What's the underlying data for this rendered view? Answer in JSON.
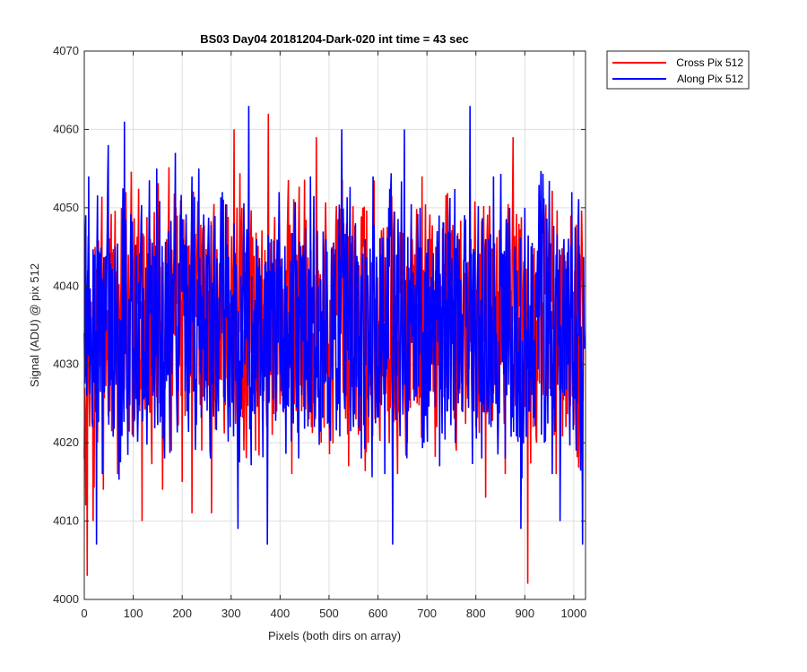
{
  "chart_data": {
    "type": "line",
    "title": "BS03 Day04 20181204-Dark-020 int time = 43 sec",
    "xlabel": "Pixels (both dirs on array)",
    "ylabel": "Signal (ADU) @ pix 512",
    "xlim": [
      0,
      1024
    ],
    "ylim": [
      4000,
      4070
    ],
    "xticks": [
      0,
      100,
      200,
      300,
      400,
      500,
      600,
      700,
      800,
      900,
      1000
    ],
    "yticks": [
      4000,
      4010,
      4020,
      4030,
      4040,
      4050,
      4060,
      4070
    ],
    "grid": true,
    "legend_position": "outside-top-right",
    "series": [
      {
        "name": "Cross Pix 512",
        "color": "#ff0000",
        "mean": 4035,
        "points": [
          [
            0,
            4018
          ],
          [
            3,
            4012
          ],
          [
            6,
            4003
          ],
          [
            10,
            4026
          ],
          [
            14,
            4038
          ],
          [
            18,
            4010
          ],
          [
            22,
            4045
          ],
          [
            27,
            4020
          ],
          [
            33,
            4030
          ],
          [
            39,
            4014
          ],
          [
            45,
            4042
          ],
          [
            52,
            4024
          ],
          [
            60,
            4034
          ],
          [
            68,
            4016
          ],
          [
            75,
            4040
          ],
          [
            82,
            4027
          ],
          [
            90,
            4044
          ],
          [
            98,
            4021
          ],
          [
            105,
            4036
          ],
          [
            112,
            4030
          ],
          [
            118,
            4010
          ],
          [
            126,
            4033
          ],
          [
            135,
            4046
          ],
          [
            144,
            4024
          ],
          [
            152,
            4038
          ],
          [
            160,
            4014
          ],
          [
            170,
            4041
          ],
          [
            180,
            4026
          ],
          [
            190,
            4049
          ],
          [
            200,
            4015
          ],
          [
            210,
            4037
          ],
          [
            220,
            4011
          ],
          [
            230,
            4042
          ],
          [
            240,
            4019
          ],
          [
            250,
            4036
          ],
          [
            260,
            4011
          ],
          [
            270,
            4038
          ],
          [
            280,
            4028
          ],
          [
            290,
            4047
          ],
          [
            298,
            4030
          ],
          [
            306,
            4060
          ],
          [
            314,
            4024
          ],
          [
            322,
            4050
          ],
          [
            330,
            4027
          ],
          [
            340,
            4046
          ],
          [
            350,
            4019
          ],
          [
            360,
            4038
          ],
          [
            368,
            4030
          ],
          [
            376,
            4062
          ],
          [
            384,
            4021
          ],
          [
            394,
            4044
          ],
          [
            404,
            4026
          ],
          [
            414,
            4038
          ],
          [
            424,
            4016
          ],
          [
            434,
            4044
          ],
          [
            444,
            4024
          ],
          [
            454,
            4038
          ],
          [
            464,
            4022
          ],
          [
            474,
            4059
          ],
          [
            484,
            4020
          ],
          [
            492,
            4046
          ],
          [
            500,
            4026
          ],
          [
            510,
            4038
          ],
          [
            520,
            4031
          ],
          [
            530,
            4048
          ],
          [
            540,
            4017
          ],
          [
            550,
            4038
          ],
          [
            560,
            4021
          ],
          [
            570,
            4045
          ],
          [
            580,
            4020
          ],
          [
            590,
            4040
          ],
          [
            600,
            4034
          ],
          [
            610,
            4044
          ],
          [
            620,
            4024
          ],
          [
            630,
            4038
          ],
          [
            640,
            4016
          ],
          [
            650,
            4042
          ],
          [
            660,
            4020
          ],
          [
            670,
            4046
          ],
          [
            680,
            4025
          ],
          [
            690,
            4054
          ],
          [
            700,
            4030
          ],
          [
            710,
            4044
          ],
          [
            720,
            4022
          ],
          [
            730,
            4040
          ],
          [
            740,
            4027
          ],
          [
            750,
            4045
          ],
          [
            760,
            4019
          ],
          [
            770,
            4038
          ],
          [
            780,
            4031
          ],
          [
            790,
            4046
          ],
          [
            800,
            4022
          ],
          [
            810,
            4037
          ],
          [
            820,
            4013
          ],
          [
            830,
            4044
          ],
          [
            840,
            4028
          ],
          [
            850,
            4037
          ],
          [
            860,
            4016
          ],
          [
            870,
            4044
          ],
          [
            876,
            4059
          ],
          [
            884,
            4025
          ],
          [
            894,
            4036
          ],
          [
            906,
            4002
          ],
          [
            914,
            4040
          ],
          [
            924,
            4020
          ],
          [
            934,
            4046
          ],
          [
            944,
            4026
          ],
          [
            954,
            4038
          ],
          [
            964,
            4016
          ],
          [
            974,
            4044
          ],
          [
            984,
            4022
          ],
          [
            994,
            4049
          ],
          [
            1004,
            4026
          ],
          [
            1012,
            4043
          ],
          [
            1020,
            4040
          ]
        ]
      },
      {
        "name": "Along Pix 512",
        "color": "#0000ff",
        "mean": 4035,
        "points": [
          [
            0,
            4034
          ],
          [
            2,
            4046
          ],
          [
            5,
            4026
          ],
          [
            9,
            4054
          ],
          [
            13,
            4030
          ],
          [
            17,
            4022
          ],
          [
            21,
            4044
          ],
          [
            25,
            4007
          ],
          [
            31,
            4035
          ],
          [
            37,
            4016
          ],
          [
            43,
            4038
          ],
          [
            49,
            4058
          ],
          [
            55,
            4028
          ],
          [
            62,
            4040
          ],
          [
            70,
            4021
          ],
          [
            78,
            4046
          ],
          [
            82,
            4061
          ],
          [
            88,
            4026
          ],
          [
            96,
            4038
          ],
          [
            104,
            4040
          ],
          [
            110,
            4024
          ],
          [
            116,
            4048
          ],
          [
            124,
            4030
          ],
          [
            132,
            4046
          ],
          [
            140,
            4026
          ],
          [
            148,
            4055
          ],
          [
            156,
            4034
          ],
          [
            164,
            4018
          ],
          [
            172,
            4047
          ],
          [
            180,
            4036
          ],
          [
            186,
            4057
          ],
          [
            194,
            4030
          ],
          [
            202,
            4046
          ],
          [
            210,
            4024
          ],
          [
            218,
            4040
          ],
          [
            226,
            4027
          ],
          [
            234,
            4055
          ],
          [
            242,
            4032
          ],
          [
            250,
            4044
          ],
          [
            258,
            4018
          ],
          [
            266,
            4046
          ],
          [
            274,
            4024
          ],
          [
            282,
            4052
          ],
          [
            290,
            4036
          ],
          [
            298,
            4022
          ],
          [
            306,
            4048
          ],
          [
            314,
            4009
          ],
          [
            322,
            4040
          ],
          [
            328,
            4030
          ],
          [
            336,
            4063
          ],
          [
            344,
            4024
          ],
          [
            352,
            4046
          ],
          [
            360,
            4026
          ],
          [
            368,
            4038
          ],
          [
            374,
            4007
          ],
          [
            382,
            4046
          ],
          [
            390,
            4030
          ],
          [
            398,
            4052
          ],
          [
            406,
            4024
          ],
          [
            414,
            4040
          ],
          [
            422,
            4030
          ],
          [
            430,
            4048
          ],
          [
            438,
            4018
          ],
          [
            446,
            4044
          ],
          [
            454,
            4028
          ],
          [
            462,
            4054
          ],
          [
            470,
            4022
          ],
          [
            478,
            4040
          ],
          [
            486,
            4032
          ],
          [
            494,
            4046
          ],
          [
            502,
            4024
          ],
          [
            510,
            4038
          ],
          [
            518,
            4028
          ],
          [
            526,
            4060
          ],
          [
            534,
            4026
          ],
          [
            542,
            4046
          ],
          [
            550,
            4022
          ],
          [
            558,
            4040
          ],
          [
            566,
            4018
          ],
          [
            574,
            4046
          ],
          [
            582,
            4034
          ],
          [
            590,
            4054
          ],
          [
            598,
            4026
          ],
          [
            606,
            4044
          ],
          [
            614,
            4016
          ],
          [
            622,
            4050
          ],
          [
            630,
            4007
          ],
          [
            638,
            4044
          ],
          [
            646,
            4030
          ],
          [
            654,
            4060
          ],
          [
            662,
            4024
          ],
          [
            670,
            4040
          ],
          [
            678,
            4026
          ],
          [
            686,
            4050
          ],
          [
            694,
            4020
          ],
          [
            702,
            4046
          ],
          [
            710,
            4030
          ],
          [
            718,
            4042
          ],
          [
            726,
            4017
          ],
          [
            734,
            4048
          ],
          [
            742,
            4024
          ],
          [
            750,
            4040
          ],
          [
            758,
            4020
          ],
          [
            766,
            4046
          ],
          [
            774,
            4030
          ],
          [
            782,
            4040
          ],
          [
            788,
            4063
          ],
          [
            796,
            4024
          ],
          [
            804,
            4044
          ],
          [
            812,
            4018
          ],
          [
            820,
            4046
          ],
          [
            828,
            4030
          ],
          [
            836,
            4054
          ],
          [
            844,
            4024
          ],
          [
            852,
            4040
          ],
          [
            860,
            4018
          ],
          [
            868,
            4046
          ],
          [
            876,
            4030
          ],
          [
            884,
            4042
          ],
          [
            892,
            4009
          ],
          [
            900,
            4050
          ],
          [
            908,
            4024
          ],
          [
            916,
            4040
          ],
          [
            924,
            4036
          ],
          [
            932,
            4050
          ],
          [
            940,
            4020
          ],
          [
            948,
            4038
          ],
          [
            956,
            4016
          ],
          [
            964,
            4044
          ],
          [
            972,
            4010
          ],
          [
            980,
            4046
          ],
          [
            988,
            4030
          ],
          [
            996,
            4052
          ],
          [
            1004,
            4024
          ],
          [
            1012,
            4044
          ],
          [
            1018,
            4007
          ],
          [
            1022,
            4032
          ]
        ]
      }
    ]
  }
}
